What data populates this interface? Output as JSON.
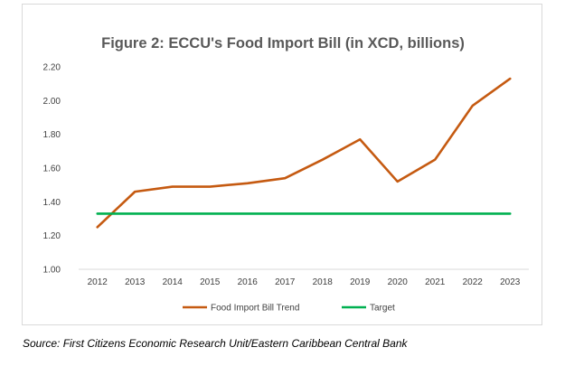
{
  "chart_data": {
    "type": "line",
    "title": "Figure 2: ECCU's Food Import Bill (in XCD, billions)",
    "xlabel": "",
    "ylabel": "",
    "categories": [
      "2012",
      "2013",
      "2014",
      "2015",
      "2016",
      "2017",
      "2018",
      "2019",
      "2020",
      "2021",
      "2022",
      "2023"
    ],
    "ylim": [
      1.0,
      2.2
    ],
    "yticks": [
      "1.00",
      "1.20",
      "1.40",
      "1.60",
      "1.80",
      "2.00",
      "2.20"
    ],
    "grid": false,
    "legend_position": "bottom",
    "series": [
      {
        "name": "Food Import Bill Trend",
        "color": "#c55a11",
        "values": [
          1.25,
          1.46,
          1.49,
          1.49,
          1.51,
          1.54,
          1.65,
          1.77,
          1.52,
          1.65,
          1.97,
          2.13
        ]
      },
      {
        "name": "Target",
        "color": "#00b050",
        "values": [
          1.33,
          1.33,
          1.33,
          1.33,
          1.33,
          1.33,
          1.33,
          1.33,
          1.33,
          1.33,
          1.33,
          1.33
        ]
      }
    ]
  },
  "source": "Source: First Citizens Economic Research Unit/Eastern Caribbean Central Bank"
}
